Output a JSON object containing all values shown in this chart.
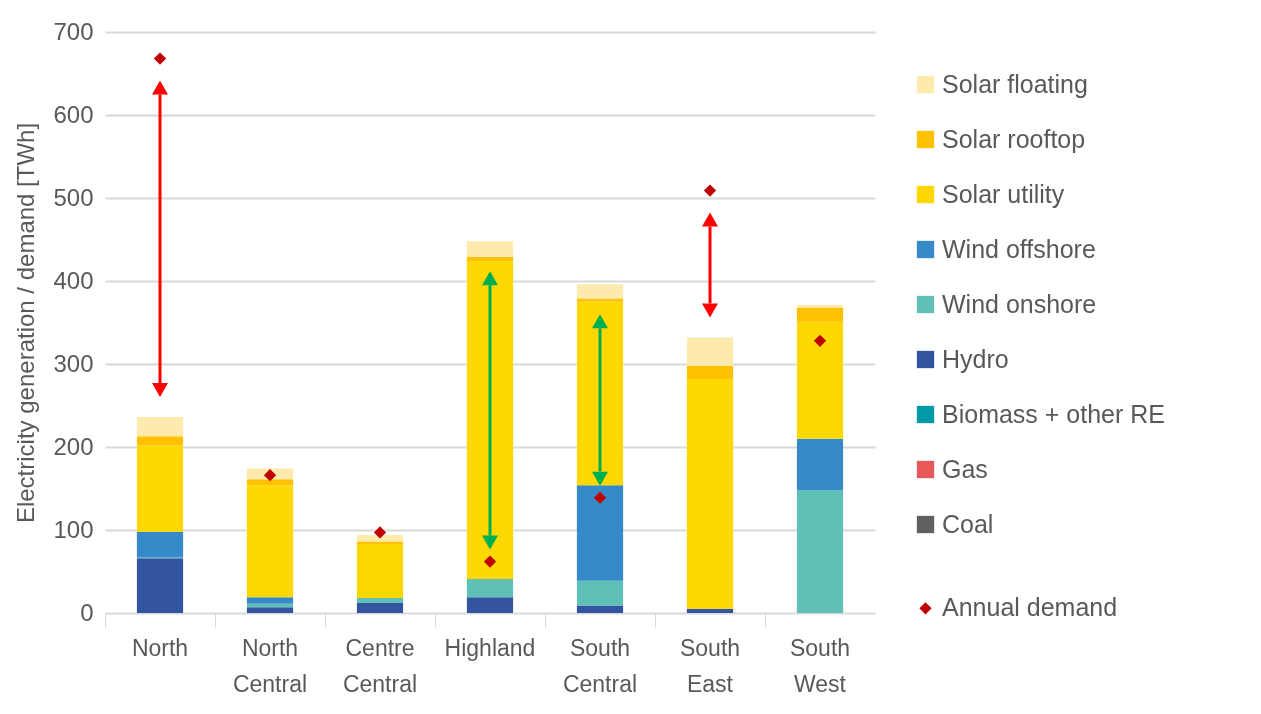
{
  "chart_data": {
    "type": "bar",
    "stacked": true,
    "ylabel": "Electricity generation / demand [TWh]",
    "categories": [
      "North",
      "North Central",
      "Centre Central",
      "Highland",
      "South Central",
      "South East",
      "South West"
    ],
    "ylim": [
      0,
      700
    ],
    "yticks": [
      0,
      100,
      200,
      300,
      400,
      500,
      600,
      700
    ],
    "grid": "y",
    "legend": "right",
    "series": [
      {
        "name": "Coal",
        "color": "#606060",
        "values": [
          0,
          0,
          0,
          0,
          0,
          0,
          0
        ]
      },
      {
        "name": "Gas",
        "color": "#e85a5a",
        "values": [
          0,
          0,
          0,
          0,
          0,
          0,
          0
        ]
      },
      {
        "name": "Biomass + other RE",
        "color": "#0099a8",
        "values": [
          0,
          0,
          0,
          0,
          0,
          0,
          0
        ]
      },
      {
        "name": "Hydro",
        "color": "#3355a0",
        "values": [
          66,
          7,
          12,
          19,
          9,
          5,
          0
        ]
      },
      {
        "name": "Wind onshore",
        "color": "#5fc0b8",
        "values": [
          1,
          4,
          6,
          22,
          30,
          0,
          148
        ]
      },
      {
        "name": "Wind offshore",
        "color": "#378ac9",
        "values": [
          31,
          8,
          0,
          0,
          115,
          0,
          62
        ]
      },
      {
        "name": "Solar utility",
        "color": "#ffd800",
        "values": [
          104,
          135,
          65,
          383,
          221,
          277,
          141
        ]
      },
      {
        "name": "Solar rooftop",
        "color": "#ffc000",
        "values": [
          11,
          7,
          3,
          5,
          4,
          16,
          17
        ]
      },
      {
        "name": "Solar floating",
        "color": "#ffeaae",
        "values": [
          23,
          13,
          8,
          19,
          17,
          34,
          3
        ]
      },
      {
        "name": "Annual demand",
        "type": "scatter",
        "marker": "diamond",
        "color": "#c00000",
        "x": [
          "North",
          "North Central",
          "Centre Central",
          "Highland",
          "South Central",
          "South East",
          "South West"
        ],
        "values": [
          668,
          166,
          97,
          62,
          139,
          509,
          328
        ]
      }
    ]
  }
}
